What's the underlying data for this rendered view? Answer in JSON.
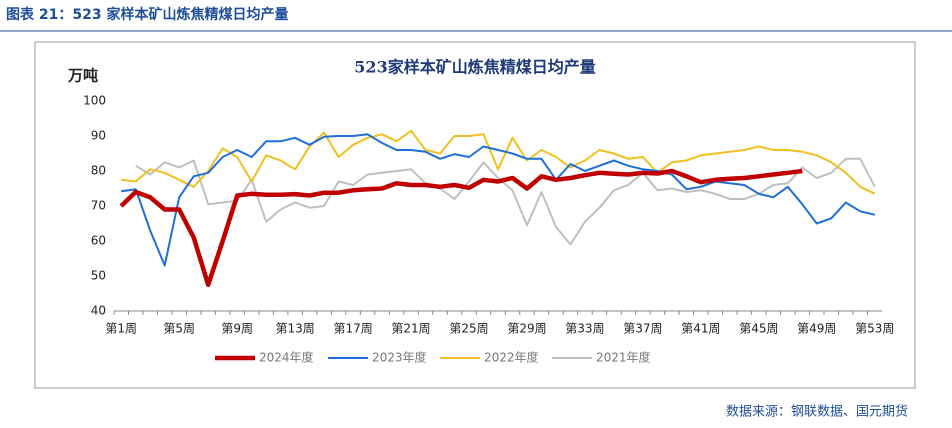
{
  "header": {
    "title": "图表 21：523 家样本矿山炼焦精煤日均产量"
  },
  "source": "数据来源：钢联数据、国元期货",
  "chart_data": {
    "type": "line",
    "title": "523家样本矿山炼焦精煤日均产量",
    "y_label": "万吨",
    "categories": [
      "第1周",
      null,
      null,
      null,
      "第5周",
      null,
      null,
      null,
      "第9周",
      null,
      null,
      null,
      "第13周",
      null,
      null,
      null,
      "第17周",
      null,
      null,
      null,
      "第21周",
      null,
      null,
      null,
      "第25周",
      null,
      null,
      null,
      "第29周",
      null,
      null,
      null,
      "第33周",
      null,
      null,
      null,
      "第37周",
      null,
      null,
      null,
      "第41周",
      null,
      null,
      null,
      "第45周",
      null,
      null,
      null,
      "第49周",
      null,
      null,
      null,
      "第53周"
    ],
    "ylim": [
      40,
      100
    ],
    "yticks": [
      40,
      50,
      60,
      70,
      80,
      90,
      100
    ],
    "grid": false,
    "legend": "bottom",
    "series": [
      {
        "name": "2024年度",
        "color": "#c00000",
        "width": 4.5,
        "values": [
          70,
          74,
          72.5,
          69,
          69,
          61,
          47.5,
          60,
          73,
          73.5,
          73.2,
          73.2,
          73.4,
          73,
          73.8,
          73.8,
          74.5,
          74.8,
          75,
          76.5,
          76,
          76,
          75.5,
          76,
          75.2,
          77.5,
          77,
          78,
          75,
          78.5,
          77.5,
          78,
          78.8,
          79.5,
          79.2,
          79,
          79.5,
          79.3,
          80,
          78.5,
          76.8,
          77.5,
          77.8,
          78,
          78.5,
          79,
          79.5,
          80,
          null,
          null,
          null,
          null,
          null
        ]
      },
      {
        "name": "2023年度",
        "color": "#1f6fd6",
        "width": 2,
        "values": [
          74.2,
          74.8,
          63,
          53,
          72.5,
          78.5,
          79.5,
          84,
          86,
          84,
          88.5,
          88.5,
          89.5,
          87.5,
          89.8,
          90,
          90,
          90.5,
          88,
          86,
          86,
          85.5,
          83.5,
          84.8,
          84,
          87,
          86,
          85,
          83.5,
          83.5,
          77.5,
          82,
          80,
          81.5,
          83,
          81.5,
          80.5,
          80,
          79,
          74.8,
          75.5,
          77,
          76.5,
          76,
          73.5,
          72.5,
          75.5,
          70.5,
          65,
          66.5,
          71,
          68.5,
          67.5
        ]
      },
      {
        "name": "2022年度",
        "color": "#f0c020",
        "width": 2,
        "values": [
          77.5,
          77,
          80.5,
          79.5,
          77.5,
          75.5,
          80,
          86.5,
          84,
          77,
          84.5,
          83,
          80.5,
          87,
          91,
          84,
          87.5,
          89.5,
          90.5,
          88.5,
          91.5,
          86,
          85,
          90,
          90,
          90.5,
          80.5,
          89.5,
          83,
          86,
          84,
          81,
          83,
          86,
          85,
          83.5,
          84,
          79.5,
          82.5,
          83,
          84.5,
          85,
          85.5,
          86,
          87,
          86,
          86,
          85.5,
          84.5,
          82.5,
          79.5,
          75.5,
          73.5
        ]
      },
      {
        "name": "2021年度",
        "color": "#bfbfbf",
        "width": 2,
        "values": [
          null,
          81.5,
          79,
          82.5,
          81,
          83,
          70.5,
          71,
          71.5,
          77.5,
          65.5,
          69,
          71,
          69.5,
          70,
          77,
          76,
          79,
          79.5,
          80,
          80.5,
          76.5,
          75,
          72,
          77,
          82.5,
          78,
          74.5,
          64.5,
          74,
          64,
          59,
          65.5,
          69.5,
          74.5,
          76,
          79.5,
          74.5,
          75,
          74,
          74.5,
          73.5,
          72,
          72,
          73.5,
          76,
          76.5,
          81,
          78,
          79.5,
          83.5,
          83.5,
          75.5
        ]
      }
    ]
  }
}
